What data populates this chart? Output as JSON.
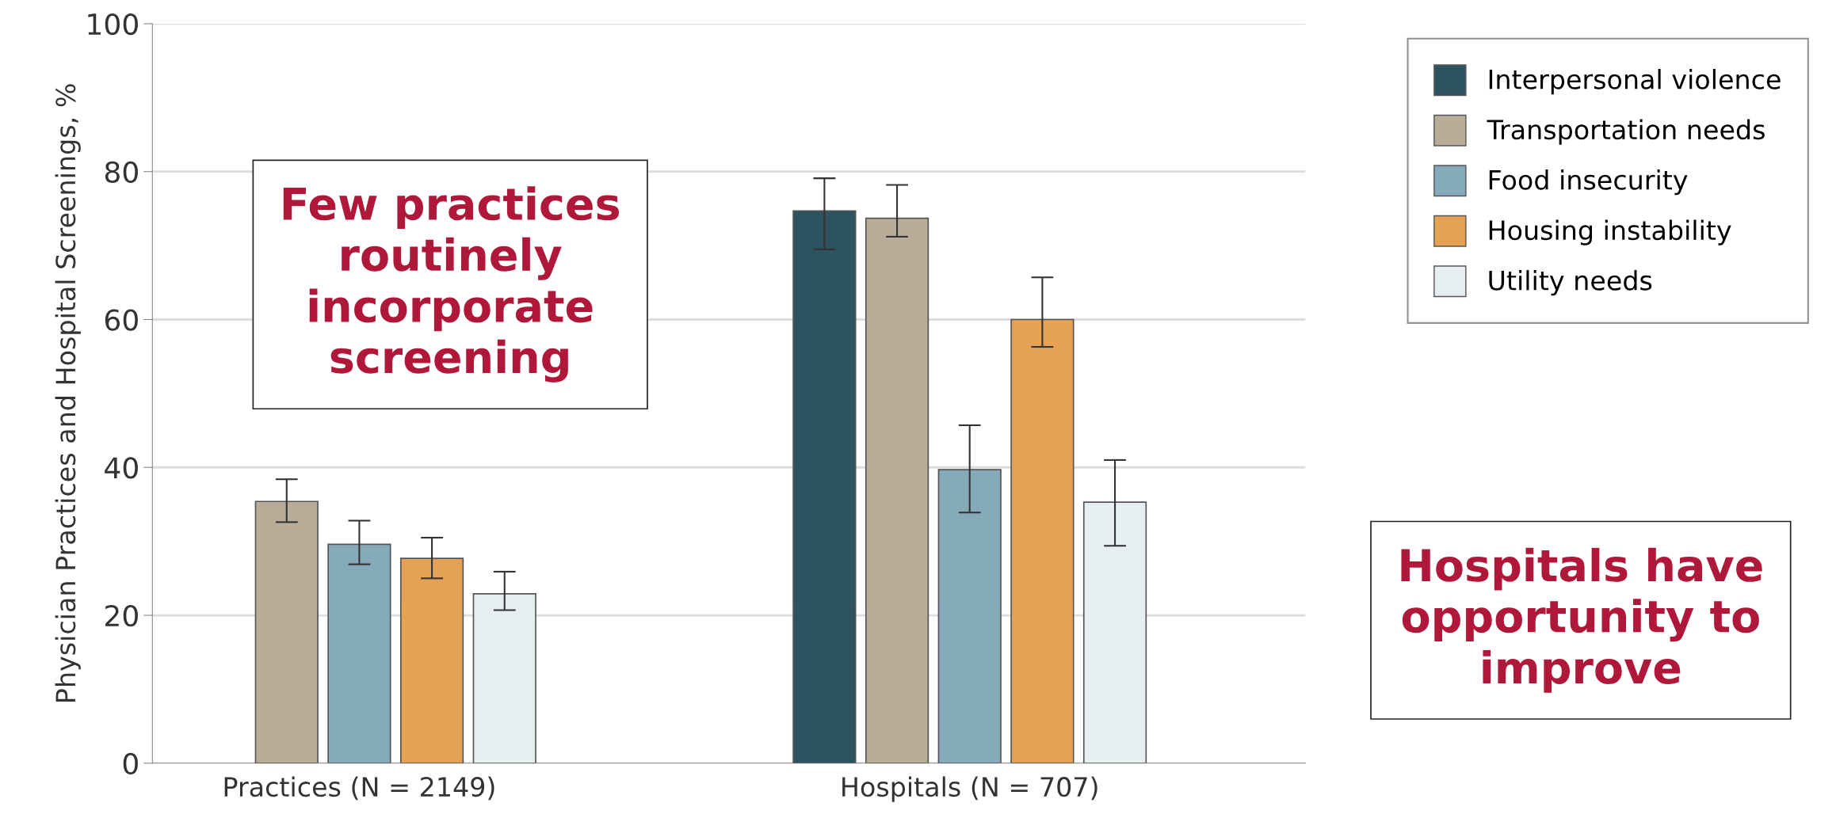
{
  "chart_data": {
    "type": "bar",
    "categories": [
      "Practices (N = 2149)",
      "Hospitals (N = 707)"
    ],
    "ylabel": "Physician Practices and Hospital Screenings, %",
    "ylim": [
      0,
      100
    ],
    "yticks": [
      0,
      20,
      40,
      60,
      80,
      100
    ],
    "grid": "y",
    "legend": "top right",
    "series": [
      {
        "name": "Interpersonal violence",
        "color": "#2e5360",
        "values": [
          null,
          74.7
        ],
        "errors": [
          null,
          [
            69.5,
            79.1
          ]
        ]
      },
      {
        "name": "Transportation needs",
        "color": "#b9ad99",
        "values": [
          35.4,
          73.7
        ],
        "errors": [
          [
            32.6,
            38.4
          ],
          [
            71.2,
            78.2
          ]
        ]
      },
      {
        "name": "Food insecurity",
        "color": "#85abbb",
        "values": [
          29.6,
          39.7
        ],
        "errors": [
          [
            26.9,
            32.8
          ],
          [
            33.9,
            45.7
          ]
        ]
      },
      {
        "name": "Housing instability",
        "color": "#e5a257",
        "values": [
          27.7,
          60.0
        ],
        "errors": [
          [
            25.0,
            30.5
          ],
          [
            56.3,
            65.7
          ]
        ]
      },
      {
        "name": "Utility needs",
        "color": "#e6eef2",
        "values": [
          22.9,
          35.3
        ],
        "errors": [
          [
            20.7,
            25.9
          ],
          [
            29.4,
            41.0
          ]
        ]
      }
    ],
    "annotations": [
      "Few practices routinely incorporate screening",
      "Hospitals have opportunity to improve"
    ]
  }
}
